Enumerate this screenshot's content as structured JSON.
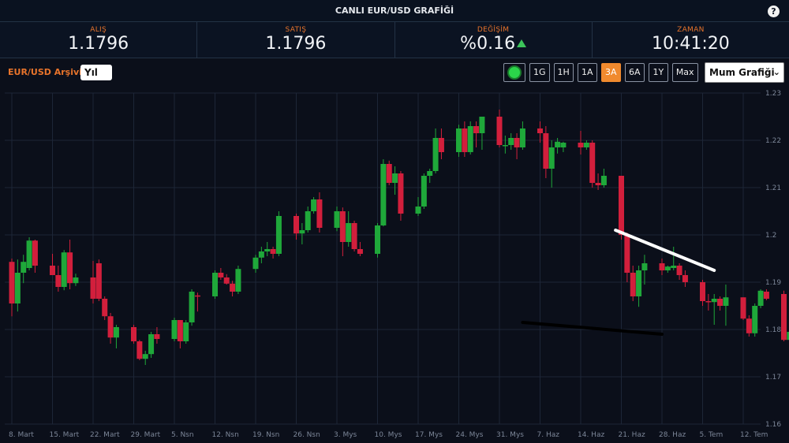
{
  "header": {
    "title": "CANLI EUR/USD GRAFİĞİ",
    "help_icon": "?"
  },
  "stats": [
    {
      "label": "ALIŞ",
      "value": "1.1796"
    },
    {
      "label": "SATIŞ",
      "value": "1.1796"
    },
    {
      "label": "DEĞİŞİM",
      "value": "%0.16",
      "trend": "up"
    },
    {
      "label": "ZAMAN",
      "value": "10:41:20"
    }
  ],
  "toolbar": {
    "archive_label": "EUR/USD Arşivi",
    "period_value": "Yıl",
    "range_buttons": [
      "1G",
      "1H",
      "1A",
      "3A",
      "6A",
      "1Y",
      "Max"
    ],
    "active_range": "3A",
    "chart_type_value": "Mum Grafiği"
  },
  "colors": {
    "up": "#1fa83a",
    "down": "#d21f3c",
    "accent": "#f08a2e",
    "background": "#0b0f1a"
  },
  "chart_data": {
    "type": "candlestick",
    "x_ticks": [
      "8. Mart",
      "15. Mart",
      "22. Mart",
      "29. Mart",
      "5. Nsn",
      "12. Nsn",
      "19. Nsn",
      "26. Nsn",
      "3. Mys",
      "10. Mys",
      "17. Mys",
      "24. Mys",
      "31. Mys",
      "7. Haz",
      "14. Haz",
      "21. Haz",
      "28. Haz",
      "5. Tem",
      "12. Tem"
    ],
    "y_ticks": [
      "1.23",
      "1.22",
      "1.21",
      "1.2",
      "1.19",
      "1.18",
      "1.17",
      "1.16"
    ],
    "ylim": [
      1.16,
      1.23
    ],
    "grid": true,
    "trendlines": [
      {
        "from": [
          "20. Haz",
          1.201
        ],
        "to": [
          "7. Tem",
          1.1925
        ],
        "color": "#ffffff"
      },
      {
        "from": [
          "4. Haz",
          1.1815
        ],
        "to": [
          "28. Haz",
          1.179
        ],
        "color": "#000000"
      }
    ],
    "candles": [
      {
        "o": 1.1943,
        "h": 1.195,
        "l": 1.1828,
        "c": 1.1855
      },
      {
        "o": 1.1855,
        "h": 1.1948,
        "l": 1.1838,
        "c": 1.192
      },
      {
        "o": 1.192,
        "h": 1.1958,
        "l": 1.1898,
        "c": 1.1943
      },
      {
        "o": 1.193,
        "h": 1.1995,
        "l": 1.1925,
        "c": 1.1988
      },
      {
        "o": 1.1988,
        "h": 1.199,
        "l": 1.192,
        "c": 1.1935
      },
      {
        "o": 1.1935,
        "h": 1.196,
        "l": 1.1915,
        "c": 1.1915
      },
      {
        "o": 1.1915,
        "h": 1.1935,
        "l": 1.188,
        "c": 1.189
      },
      {
        "o": 1.189,
        "h": 1.1968,
        "l": 1.1883,
        "c": 1.1963
      },
      {
        "o": 1.1963,
        "h": 1.199,
        "l": 1.1885,
        "c": 1.1898
      },
      {
        "o": 1.1898,
        "h": 1.1918,
        "l": 1.1892,
        "c": 1.191
      },
      {
        "o": 1.191,
        "h": 1.1945,
        "l": 1.1855,
        "c": 1.1865
      },
      {
        "o": 1.194,
        "h": 1.1948,
        "l": 1.186,
        "c": 1.1865
      },
      {
        "o": 1.1865,
        "h": 1.187,
        "l": 1.182,
        "c": 1.1828
      },
      {
        "o": 1.1828,
        "h": 1.1835,
        "l": 1.177,
        "c": 1.1783
      },
      {
        "o": 1.1783,
        "h": 1.181,
        "l": 1.176,
        "c": 1.1805
      },
      {
        "o": 1.1805,
        "h": 1.181,
        "l": 1.177,
        "c": 1.1775
      },
      {
        "o": 1.1775,
        "h": 1.1778,
        "l": 1.1735,
        "c": 1.1738
      },
      {
        "o": 1.1738,
        "h": 1.1755,
        "l": 1.1725,
        "c": 1.1748
      },
      {
        "o": 1.1748,
        "h": 1.1795,
        "l": 1.174,
        "c": 1.179
      },
      {
        "o": 1.179,
        "h": 1.1805,
        "l": 1.177,
        "c": 1.178
      },
      {
        "o": 1.178,
        "h": 1.1825,
        "l": 1.1775,
        "c": 1.182
      },
      {
        "o": 1.182,
        "h": 1.182,
        "l": 1.176,
        "c": 1.1775
      },
      {
        "o": 1.1775,
        "h": 1.182,
        "l": 1.177,
        "c": 1.1815
      },
      {
        "o": 1.1815,
        "h": 1.1885,
        "l": 1.1808,
        "c": 1.188
      },
      {
        "o": 1.1872,
        "h": 1.1878,
        "l": 1.1838,
        "c": 1.187
      },
      {
        "o": 1.187,
        "h": 1.1925,
        "l": 1.1865,
        "c": 1.192
      },
      {
        "o": 1.192,
        "h": 1.193,
        "l": 1.1905,
        "c": 1.191
      },
      {
        "o": 1.191,
        "h": 1.1917,
        "l": 1.1895,
        "c": 1.1897
      },
      {
        "o": 1.1897,
        "h": 1.1903,
        "l": 1.187,
        "c": 1.188
      },
      {
        "o": 1.188,
        "h": 1.1935,
        "l": 1.1875,
        "c": 1.1928
      },
      {
        "o": 1.1928,
        "h": 1.1958,
        "l": 1.192,
        "c": 1.1952
      },
      {
        "o": 1.1952,
        "h": 1.1975,
        "l": 1.194,
        "c": 1.1965
      },
      {
        "o": 1.1965,
        "h": 1.1985,
        "l": 1.1955,
        "c": 1.197
      },
      {
        "o": 1.197,
        "h": 1.1975,
        "l": 1.195,
        "c": 1.196
      },
      {
        "o": 1.196,
        "h": 1.205,
        "l": 1.1955,
        "c": 1.204
      },
      {
        "o": 1.204,
        "h": 1.2045,
        "l": 1.199,
        "c": 1.2003
      },
      {
        "o": 1.2003,
        "h": 1.2025,
        "l": 1.198,
        "c": 1.201
      },
      {
        "o": 1.201,
        "h": 1.206,
        "l": 1.2005,
        "c": 1.205
      },
      {
        "o": 1.205,
        "h": 1.208,
        "l": 1.2045,
        "c": 1.2075
      },
      {
        "o": 1.2075,
        "h": 1.209,
        "l": 1.2005,
        "c": 1.2015
      },
      {
        "o": 1.2015,
        "h": 1.206,
        "l": 1.2008,
        "c": 1.205
      },
      {
        "o": 1.205,
        "h": 1.2058,
        "l": 1.1955,
        "c": 1.1985
      },
      {
        "o": 1.1985,
        "h": 1.205,
        "l": 1.1975,
        "c": 1.2025
      },
      {
        "o": 1.2025,
        "h": 1.203,
        "l": 1.1965,
        "c": 1.197
      },
      {
        "o": 1.197,
        "h": 1.1985,
        "l": 1.1955,
        "c": 1.196
      },
      {
        "o": 1.196,
        "h": 1.2025,
        "l": 1.1952,
        "c": 1.202
      },
      {
        "o": 1.202,
        "h": 1.216,
        "l": 1.2018,
        "c": 1.215
      },
      {
        "o": 1.215,
        "h": 1.2157,
        "l": 1.2105,
        "c": 1.211
      },
      {
        "o": 1.211,
        "h": 1.2145,
        "l": 1.2085,
        "c": 1.213
      },
      {
        "o": 1.213,
        "h": 1.2135,
        "l": 1.203,
        "c": 1.2045
      },
      {
        "o": 1.2045,
        "h": 1.208,
        "l": 1.204,
        "c": 1.206
      },
      {
        "o": 1.206,
        "h": 1.213,
        "l": 1.2055,
        "c": 1.2125
      },
      {
        "o": 1.2125,
        "h": 1.214,
        "l": 1.211,
        "c": 1.2135
      },
      {
        "o": 1.2135,
        "h": 1.2225,
        "l": 1.213,
        "c": 1.2205
      },
      {
        "o": 1.2205,
        "h": 1.2225,
        "l": 1.216,
        "c": 1.2175
      },
      {
        "o": 1.2175,
        "h": 1.2233,
        "l": 1.2165,
        "c": 1.2225
      },
      {
        "o": 1.2225,
        "h": 1.224,
        "l": 1.2165,
        "c": 1.2175
      },
      {
        "o": 1.2175,
        "h": 1.224,
        "l": 1.217,
        "c": 1.223
      },
      {
        "o": 1.223,
        "h": 1.224,
        "l": 1.2185,
        "c": 1.2215
      },
      {
        "o": 1.2215,
        "h": 1.225,
        "l": 1.218,
        "c": 1.225
      },
      {
        "o": 1.225,
        "h": 1.2265,
        "l": 1.2185,
        "c": 1.219
      },
      {
        "o": 1.219,
        "h": 1.221,
        "l": 1.2172,
        "c": 1.219
      },
      {
        "o": 1.219,
        "h": 1.2215,
        "l": 1.218,
        "c": 1.2205
      },
      {
        "o": 1.2205,
        "h": 1.2215,
        "l": 1.216,
        "c": 1.2185
      },
      {
        "o": 1.2185,
        "h": 1.224,
        "l": 1.218,
        "c": 1.2225
      },
      {
        "o": 1.2225,
        "h": 1.224,
        "l": 1.2195,
        "c": 1.2215
      },
      {
        "o": 1.2215,
        "h": 1.223,
        "l": 1.212,
        "c": 1.214
      },
      {
        "o": 1.214,
        "h": 1.22,
        "l": 1.21,
        "c": 1.2185
      },
      {
        "o": 1.2185,
        "h": 1.2205,
        "l": 1.2172,
        "c": 1.2197
      },
      {
        "o": 1.2185,
        "h": 1.2197,
        "l": 1.2175,
        "c": 1.2195
      },
      {
        "o": 1.2195,
        "h": 1.222,
        "l": 1.217,
        "c": 1.2185
      },
      {
        "o": 1.2185,
        "h": 1.22,
        "l": 1.218,
        "c": 1.2195
      },
      {
        "o": 1.2195,
        "h": 1.22,
        "l": 1.21,
        "c": 1.211
      },
      {
        "o": 1.211,
        "h": 1.213,
        "l": 1.2095,
        "c": 1.2105
      },
      {
        "o": 1.2105,
        "h": 1.214,
        "l": 1.21,
        "c": 1.2125
      },
      {
        "o": 1.2125,
        "h": 1.2125,
        "l": 1.199,
        "c": 1.2
      },
      {
        "o": 1.2,
        "h": 1.2005,
        "l": 1.19,
        "c": 1.192
      },
      {
        "o": 1.192,
        "h": 1.1935,
        "l": 1.186,
        "c": 1.187
      },
      {
        "o": 1.187,
        "h": 1.1935,
        "l": 1.1848,
        "c": 1.1925
      },
      {
        "o": 1.1925,
        "h": 1.1958,
        "l": 1.1895,
        "c": 1.194
      },
      {
        "o": 1.194,
        "h": 1.195,
        "l": 1.1915,
        "c": 1.1925
      },
      {
        "o": 1.1925,
        "h": 1.1935,
        "l": 1.192,
        "c": 1.1933
      },
      {
        "o": 1.193,
        "h": 1.1975,
        "l": 1.1925,
        "c": 1.1935
      },
      {
        "o": 1.1935,
        "h": 1.194,
        "l": 1.1905,
        "c": 1.1915
      },
      {
        "o": 1.1915,
        "h": 1.1925,
        "l": 1.189,
        "c": 1.19
      },
      {
        "o": 1.19,
        "h": 1.1905,
        "l": 1.185,
        "c": 1.186
      },
      {
        "o": 1.186,
        "h": 1.1875,
        "l": 1.184,
        "c": 1.1858
      },
      {
        "o": 1.1858,
        "h": 1.1875,
        "l": 1.181,
        "c": 1.1865
      },
      {
        "o": 1.1865,
        "h": 1.187,
        "l": 1.184,
        "c": 1.185
      },
      {
        "o": 1.185,
        "h": 1.1895,
        "l": 1.1808,
        "c": 1.1868
      },
      {
        "o": 1.1868,
        "h": 1.1868,
        "l": 1.182,
        "c": 1.1823
      },
      {
        "o": 1.1823,
        "h": 1.183,
        "l": 1.1785,
        "c": 1.1792
      },
      {
        "o": 1.1792,
        "h": 1.1855,
        "l": 1.1785,
        "c": 1.185
      },
      {
        "o": 1.185,
        "h": 1.1885,
        "l": 1.1845,
        "c": 1.1882
      },
      {
        "o": 1.188,
        "h": 1.1885,
        "l": 1.1862,
        "c": 1.1865
      },
      {
        "o": 1.1875,
        "h": 1.1882,
        "l": 1.1775,
        "c": 1.1778
      },
      {
        "o": 1.1778,
        "h": 1.18,
        "l": 1.1775,
        "c": 1.1795
      }
    ]
  }
}
